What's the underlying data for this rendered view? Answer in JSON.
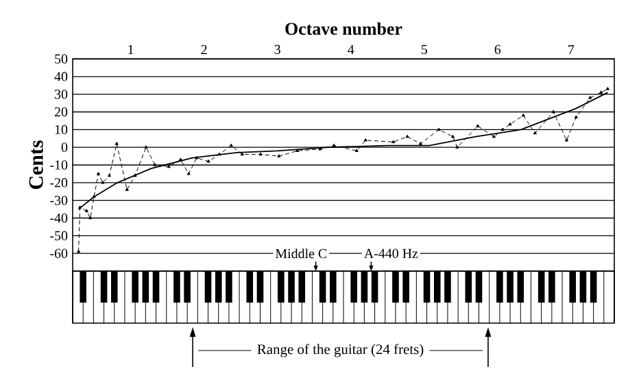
{
  "chart_data": {
    "type": "line",
    "xlabel": "Octave number",
    "ylabel": "Cents",
    "xlim": [
      0.71,
      8.09
    ],
    "xticks": [
      {
        "value": 1.5,
        "label": "1"
      },
      {
        "value": 2.5,
        "label": "2"
      },
      {
        "value": 3.5,
        "label": "3"
      },
      {
        "value": 4.5,
        "label": "4"
      },
      {
        "value": 5.5,
        "label": "5"
      },
      {
        "value": 6.5,
        "label": "6"
      },
      {
        "value": 7.5,
        "label": "7"
      }
    ],
    "ylim": [
      -70,
      50
    ],
    "yticks": [
      -60,
      -50,
      -40,
      -30,
      -20,
      -10,
      0,
      10,
      20,
      30,
      40,
      50
    ],
    "grid": "y",
    "series": [
      {
        "color": "#000000",
        "marker": "triangle",
        "line_style": "dashed",
        "x": [
          0.79,
          0.81,
          0.9,
          0.95,
          1.0,
          1.06,
          1.12,
          1.21,
          1.31,
          1.45,
          1.56,
          1.71,
          1.83,
          2.02,
          2.18,
          2.29,
          2.4,
          2.56,
          2.71,
          2.87,
          3.02,
          3.27,
          3.52,
          3.77,
          4.08,
          4.27,
          4.58,
          4.7,
          5.08,
          5.27,
          5.45,
          5.7,
          5.89,
          5.95,
          6.23,
          6.45,
          6.57,
          6.67,
          6.85,
          7.01,
          7.26,
          7.44,
          7.57,
          7.76,
          7.91,
          8.0
        ],
        "values": [
          -59,
          -34,
          -36,
          -40,
          -28,
          -15,
          -20,
          -16,
          2,
          -24,
          -16,
          0,
          -10,
          -11,
          -7,
          -15,
          -6,
          -8,
          -4,
          1,
          -4,
          -4,
          -5,
          -2,
          -1,
          1,
          -2,
          4,
          3,
          6,
          2,
          10,
          6,
          0,
          12,
          6,
          10,
          13,
          18,
          8,
          20,
          4,
          17,
          28,
          31,
          33
        ]
      },
      {
        "color": "#000000",
        "marker": "none",
        "line_style": "solid",
        "x": [
          0.79,
          1.0,
          1.32,
          1.78,
          2.34,
          2.95,
          3.5,
          4.2,
          5.0,
          5.57,
          6.2,
          6.82,
          7.57,
          8.0
        ],
        "values": [
          -35,
          -28,
          -20,
          -12,
          -6,
          -3,
          -2,
          0,
          1,
          1,
          6,
          10,
          22,
          31
        ]
      }
    ],
    "annotations": [
      "Middle C",
      "A-440 Hz",
      "Range of the guitar (24 frets)"
    ]
  }
}
